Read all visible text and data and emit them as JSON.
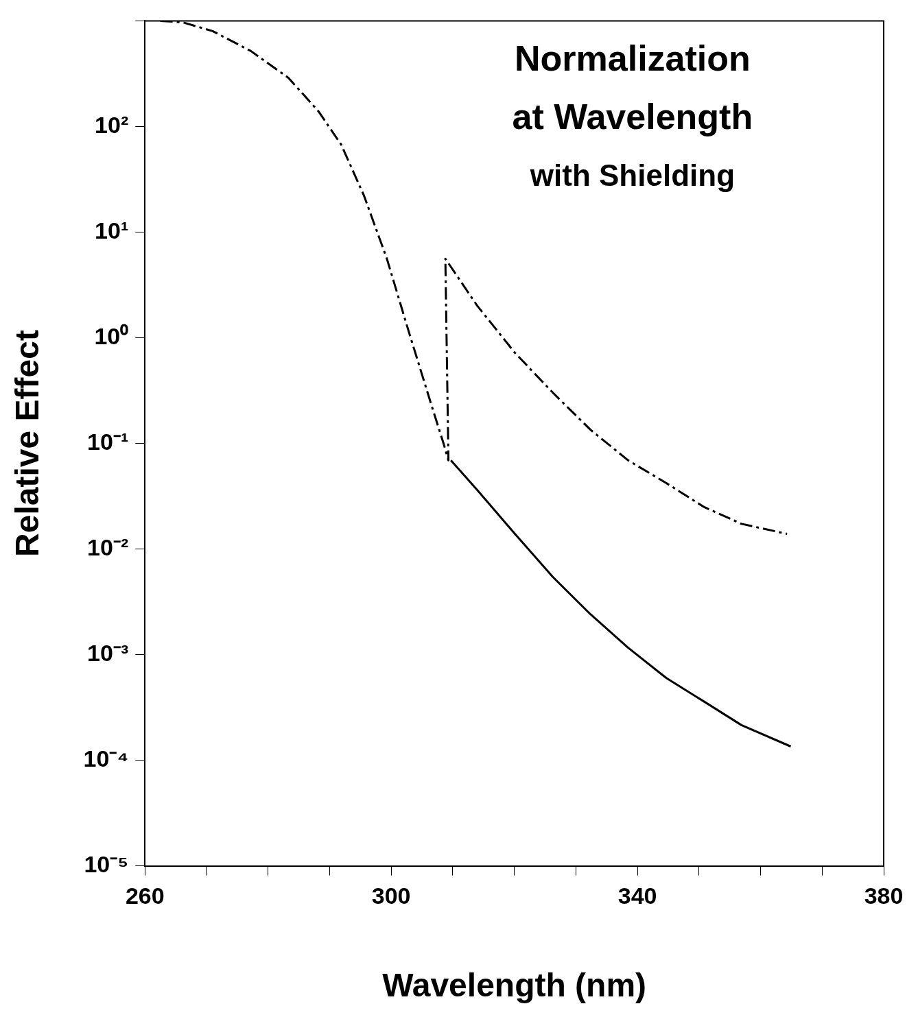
{
  "chart_data": {
    "type": "line",
    "xlabel": "Wavelength (nm)",
    "ylabel": "Relative Effect",
    "log": "y",
    "grid": false,
    "legend": false,
    "marker": "none",
    "annotations": [
      "Normalization",
      "at Wavelength",
      "with Shielding"
    ],
    "xlim": [
      260,
      380
    ],
    "xticks": [
      260,
      {
        "value": 270,
        "label": null
      },
      {
        "value": 280,
        "label": null
      },
      {
        "value": 290,
        "label": null
      },
      300,
      {
        "value": 310,
        "label": null
      },
      {
        "value": 320,
        "label": null
      },
      {
        "value": 330,
        "label": null
      },
      340,
      {
        "value": 350,
        "label": null
      },
      {
        "value": 360,
        "label": null
      },
      {
        "value": 370,
        "label": null
      },
      380
    ],
    "ylim": [
      1e-05,
      1000
    ],
    "yticks": [
      {
        "value": 1e-05,
        "label": "10⁻⁵"
      },
      {
        "value": 0.0001,
        "label": "10⁻⁴"
      },
      {
        "value": 0.001,
        "label": "10⁻³"
      },
      {
        "value": 0.01,
        "label": "10⁻²"
      },
      {
        "value": 0.1,
        "label": "10⁻¹"
      },
      {
        "value": 1,
        "label": "10⁰"
      },
      {
        "value": 10,
        "label": "10¹"
      },
      {
        "value": 100,
        "label": "10²"
      },
      {
        "value": 1000,
        "label": null
      }
    ],
    "series": [
      {
        "color": "#000000",
        "line_style": "dashed",
        "x": [
          262.5,
          266.1,
          271.0,
          277.2,
          283.3,
          288.2,
          291.9,
          295.6,
          299.3,
          302.9,
          306.6,
          308.5,
          309.3,
          308.8,
          314.0,
          320.1,
          326.3,
          332.4,
          338.5,
          344.7,
          350.8,
          356.9,
          364.3
        ],
        "values": [
          1000,
          970,
          800,
          518,
          289,
          139,
          67,
          22,
          5.6,
          1.12,
          0.224,
          0.1,
          0.069,
          5.6,
          2.0,
          0.72,
          0.3,
          0.134,
          0.069,
          0.042,
          0.025,
          0.0173,
          0.0139
        ]
      },
      {
        "color": "#000000",
        "line_style": "solid",
        "x": [
          309.7,
          314.0,
          320.1,
          326.3,
          332.4,
          338.5,
          344.7,
          350.8,
          356.9,
          364.9
        ],
        "values": [
          0.069,
          0.036,
          0.0139,
          0.0054,
          0.0024,
          0.00116,
          0.0006,
          0.00036,
          0.000215,
          0.000135
        ]
      }
    ]
  }
}
